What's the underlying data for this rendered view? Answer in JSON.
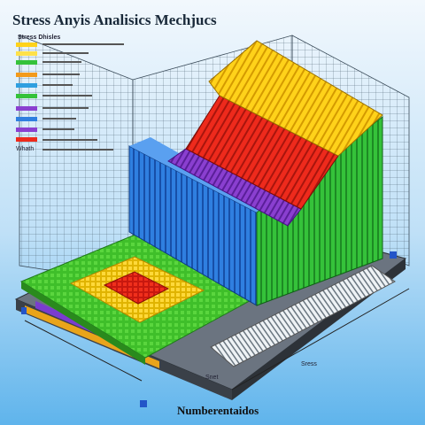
{
  "header": {
    "title": "Stress Anyis Analisics Mechjucs"
  },
  "legend": {
    "title": "Stress Dhisles",
    "extra": "Whath"
  },
  "labels": {
    "bottom": "Numberentaidos",
    "axis_right": "Sress",
    "axis_bottom": "Snet"
  }
}
